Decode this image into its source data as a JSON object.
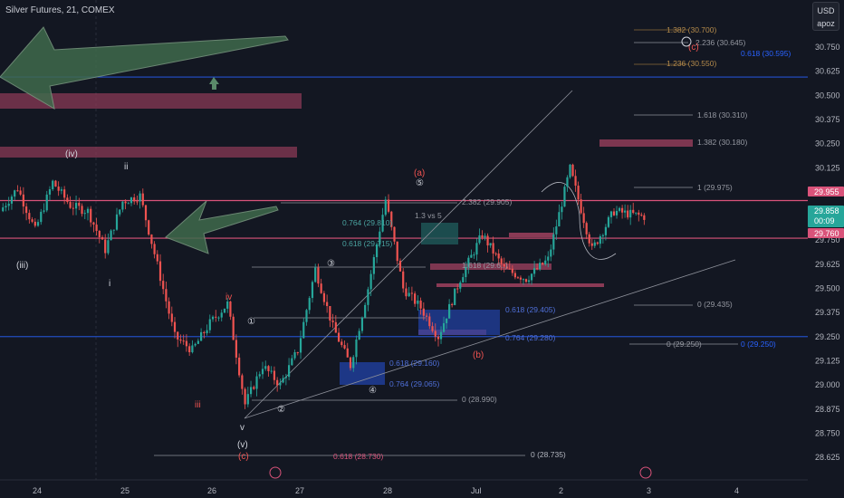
{
  "header": {
    "symbol_line": "Silver Futures, 21, COMEX"
  },
  "axis_unit": {
    "currency": "USD",
    "mode": "apoz"
  },
  "colors": {
    "bg": "#131722",
    "up": "#26a69a",
    "down": "#ef5350",
    "pink": "#d9537a",
    "pinkbox": "#8a3a55",
    "blue": "#2962ff",
    "fib_gray": "#9598a1",
    "fib_blue": "#4f6fd8",
    "fib_teal": "#4aa3a0",
    "fib_gold": "#b58b4b",
    "arrow_fill": "#3f6a4c"
  },
  "chart_data": {
    "type": "candlestick",
    "title": "Silver Futures, 21, COMEX",
    "ylim": [
      28.625,
      30.75
    ],
    "y_ticks": [
      30.75,
      30.625,
      30.5,
      30.375,
      30.25,
      30.125,
      30.0,
      29.875,
      29.75,
      29.625,
      29.5,
      29.375,
      29.25,
      29.125,
      29.0,
      28.875,
      28.75,
      28.625
    ],
    "x_ticks": [
      "24",
      "25",
      "26",
      "27",
      "28",
      "Jul",
      "2",
      "3",
      "4"
    ],
    "price_badges": [
      {
        "label": "29.955",
        "value": 29.955,
        "color": "#d9537a"
      },
      {
        "label": "29.858",
        "sub": "00:09",
        "value": 29.858,
        "color": "#26a69a"
      },
      {
        "label": "29.760",
        "value": 29.76,
        "color": "#d9537a"
      }
    ],
    "close_path": [
      [
        "24",
        29.9
      ],
      [
        "24",
        30.02
      ],
      [
        "24",
        29.8
      ],
      [
        "24",
        30.05
      ],
      [
        "24",
        29.93
      ],
      [
        "25",
        29.9
      ],
      [
        "25",
        29.7
      ],
      [
        "25",
        29.95
      ],
      [
        "25",
        29.98
      ],
      [
        "25",
        29.62
      ],
      [
        "26",
        29.25
      ],
      [
        "26",
        29.18
      ],
      [
        "26",
        29.32
      ],
      [
        "26",
        29.42
      ],
      [
        "26",
        28.9
      ],
      [
        "27",
        29.1
      ],
      [
        "27",
        29.0
      ],
      [
        "27",
        29.18
      ],
      [
        "27",
        29.6
      ],
      [
        "27",
        29.3
      ],
      [
        "28",
        29.1
      ],
      [
        "28",
        29.5
      ],
      [
        "28",
        29.96
      ],
      [
        "28",
        29.5
      ],
      [
        "28",
        29.4
      ],
      [
        "Jul",
        29.25
      ],
      [
        "Jul",
        29.55
      ],
      [
        "Jul",
        29.78
      ],
      [
        "Jul",
        29.6
      ],
      [
        "2",
        29.55
      ],
      [
        "2",
        29.65
      ],
      [
        "2",
        30.12
      ],
      [
        "2",
        29.7
      ],
      [
        "3",
        29.9
      ],
      [
        "3",
        29.86
      ]
    ],
    "horizontal_levels": [
      {
        "value": 30.595,
        "label": "0.618 (30.595)",
        "color": "#2962ff"
      },
      {
        "value": 29.955,
        "label": "",
        "color": "#d9537a"
      },
      {
        "value": 29.76,
        "label": "",
        "color": "#d9537a"
      },
      {
        "value": 29.25,
        "label": "0 (29.250)",
        "color": "#2962ff"
      }
    ],
    "fib_labels": [
      {
        "text": "1.382 (30.700)",
        "value": 30.7
      },
      {
        "text": "2.236 (30.645)",
        "value": 30.645
      },
      {
        "text": "1.236 (30.550)",
        "value": 30.55
      },
      {
        "text": "1.618 (30.310)",
        "value": 30.31
      },
      {
        "text": "1.382 (30.180)",
        "value": 30.18
      },
      {
        "text": "1 (29.975)",
        "value": 29.975
      },
      {
        "text": "0 (29.435)",
        "value": 29.435
      },
      {
        "text": "0 (29.250)",
        "value": 29.25
      },
      {
        "text": "2.382 (29.905)",
        "value": 29.905
      },
      {
        "text": "0.764 (29.810)",
        "value": 29.81
      },
      {
        "text": "0.618 (29.715)",
        "value": 29.715
      },
      {
        "text": "1.618 (29.6..)",
        "value": 29.61
      },
      {
        "text": "0.618 (29.405)",
        "value": 29.405
      },
      {
        "text": "0.764 (29.280)",
        "value": 29.28
      },
      {
        "text": "0.618 (29.160)",
        "value": 29.16
      },
      {
        "text": "0.764 (29.065)",
        "value": 29.065
      },
      {
        "text": "0 (28.990)",
        "value": 28.99
      },
      {
        "text": "0.618 (28.730)",
        "value": 28.73
      },
      {
        "text": "0 (28.735)",
        "value": 28.735
      },
      {
        "text": "1.3 vs 5",
        "value": 29.77
      }
    ],
    "wave_labels": [
      {
        "text": "(iv)"
      },
      {
        "text": "ii"
      },
      {
        "text": "(iii)"
      },
      {
        "text": "i"
      },
      {
        "text": "iv"
      },
      {
        "text": "iii"
      },
      {
        "text": "v"
      },
      {
        "text": "(v)"
      },
      {
        "text": "(c)"
      },
      {
        "text": "(a)"
      },
      {
        "text": "⑤"
      },
      {
        "text": "③"
      },
      {
        "text": "①"
      },
      {
        "text": "②"
      },
      {
        "text": "④"
      },
      {
        "text": "(b)"
      },
      {
        "text": "(c)"
      }
    ]
  }
}
